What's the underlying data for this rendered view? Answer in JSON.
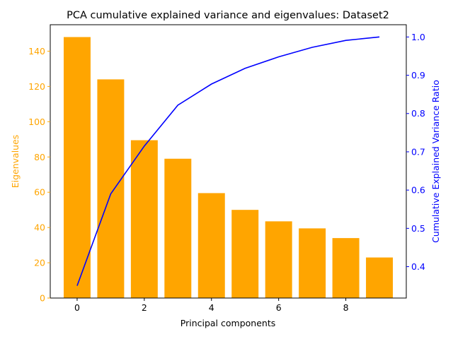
{
  "chart_data": {
    "type": "bar+line",
    "title": "PCA cumulative explained variance and eigenvalues: Dataset2",
    "xlabel": "Principal components",
    "ylabel_left": "Eigenvalues",
    "ylabel_right": "Cumulative Explained Variance Ratio",
    "x": [
      0,
      1,
      2,
      3,
      4,
      5,
      6,
      7,
      8,
      9
    ],
    "xlim": [
      -0.8,
      9.8
    ],
    "x_ticks": [
      0,
      2,
      4,
      6,
      8
    ],
    "ylim_left": [
      0,
      155
    ],
    "y_ticks_left": [
      0,
      20,
      40,
      60,
      80,
      100,
      120,
      140
    ],
    "ylim_right": [
      0.318,
      1.032
    ],
    "y_ticks_right": [
      0.4,
      0.5,
      0.6,
      0.7,
      0.8,
      0.9,
      1.0
    ],
    "grid": false,
    "series": [
      {
        "kind": "bar",
        "axis": "left",
        "color": "#FFA500",
        "values": [
          148,
          124,
          89.5,
          79,
          59.5,
          50,
          43.5,
          39.5,
          34,
          23
        ]
      },
      {
        "kind": "line",
        "axis": "right",
        "color": "#0000FF",
        "values": [
          0.35,
          0.59,
          0.715,
          0.822,
          0.877,
          0.918,
          0.948,
          0.973,
          0.991,
          1.0
        ]
      }
    ]
  }
}
